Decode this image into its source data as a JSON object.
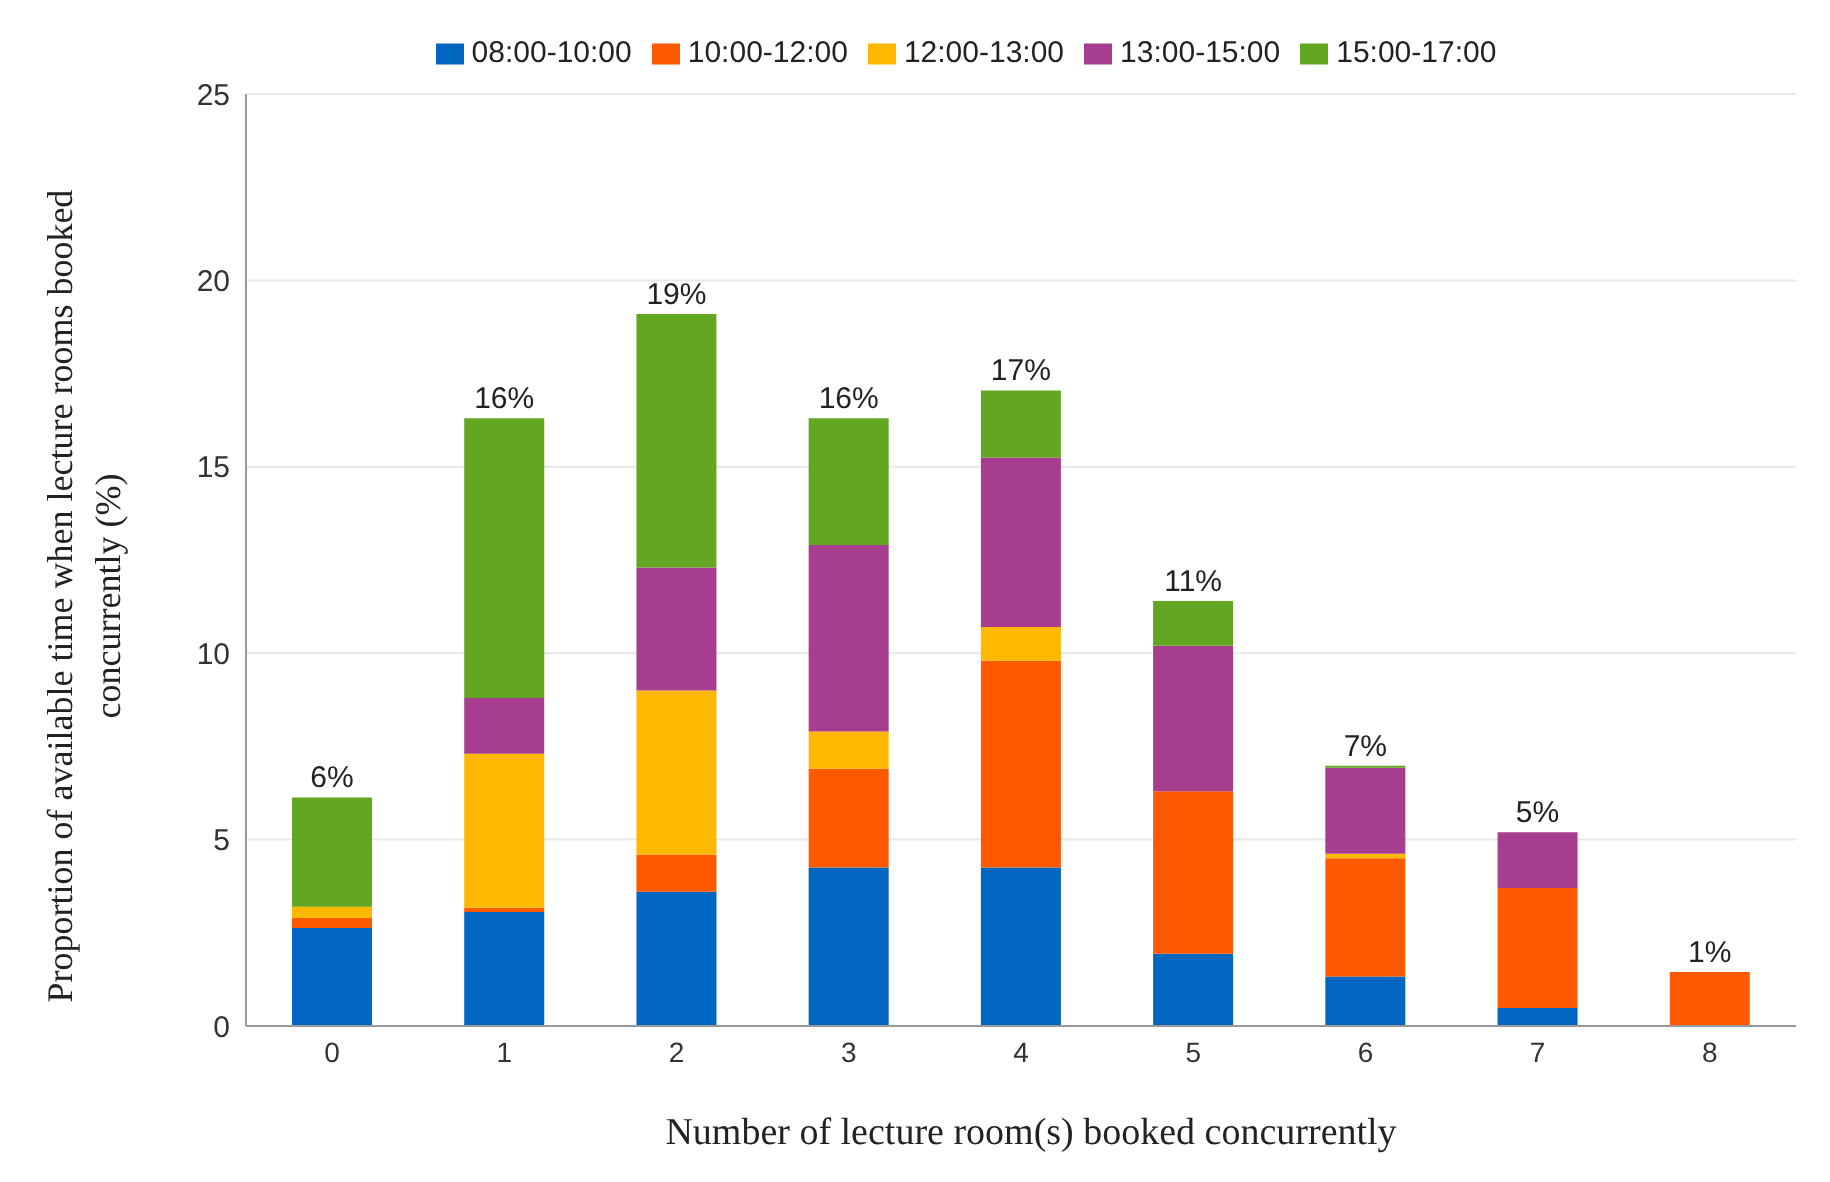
{
  "chart_data": {
    "type": "bar",
    "stacked": true,
    "xlabel": "Number of lecture room(s) booked concurrently",
    "ylabel": "Proportion of available time when lecture rooms booked concurrently  (%)",
    "categories": [
      "0",
      "1",
      "2",
      "3",
      "4",
      "5",
      "6",
      "7",
      "8"
    ],
    "series": [
      {
        "name": "08:00-10:00",
        "color": "#0066c0",
        "values": [
          2.63,
          3.06,
          3.6,
          4.25,
          4.25,
          1.94,
          1.33,
          0.48,
          0
        ]
      },
      {
        "name": "10:00-12:00",
        "color": "#ff5a00",
        "values": [
          0.27,
          0.11,
          1.0,
          2.65,
          5.55,
          4.36,
          3.17,
          3.22,
          1.45
        ]
      },
      {
        "name": "12:00-13:00",
        "color": "#ffb800",
        "values": [
          0.3,
          4.13,
          4.4,
          1.0,
          0.9,
          0,
          0.12,
          0,
          0
        ]
      },
      {
        "name": "13:00-15:00",
        "color": "#a63d8e",
        "values": [
          0,
          1.5,
          3.3,
          5.0,
          4.55,
          3.9,
          2.31,
          1.5,
          0
        ]
      },
      {
        "name": "15:00-17:00",
        "color": "#63a621",
        "values": [
          2.93,
          7.5,
          6.8,
          3.4,
          1.8,
          1.2,
          0.05,
          0,
          0
        ]
      }
    ],
    "totals": [
      "6%",
      "16%",
      "19%",
      "16%",
      "17%",
      "11%",
      "7%",
      "5%",
      "1%"
    ],
    "ylim": [
      0,
      25
    ],
    "yticks": [
      0,
      5,
      10,
      15,
      20,
      25
    ],
    "grid": "y",
    "legend": "top"
  }
}
